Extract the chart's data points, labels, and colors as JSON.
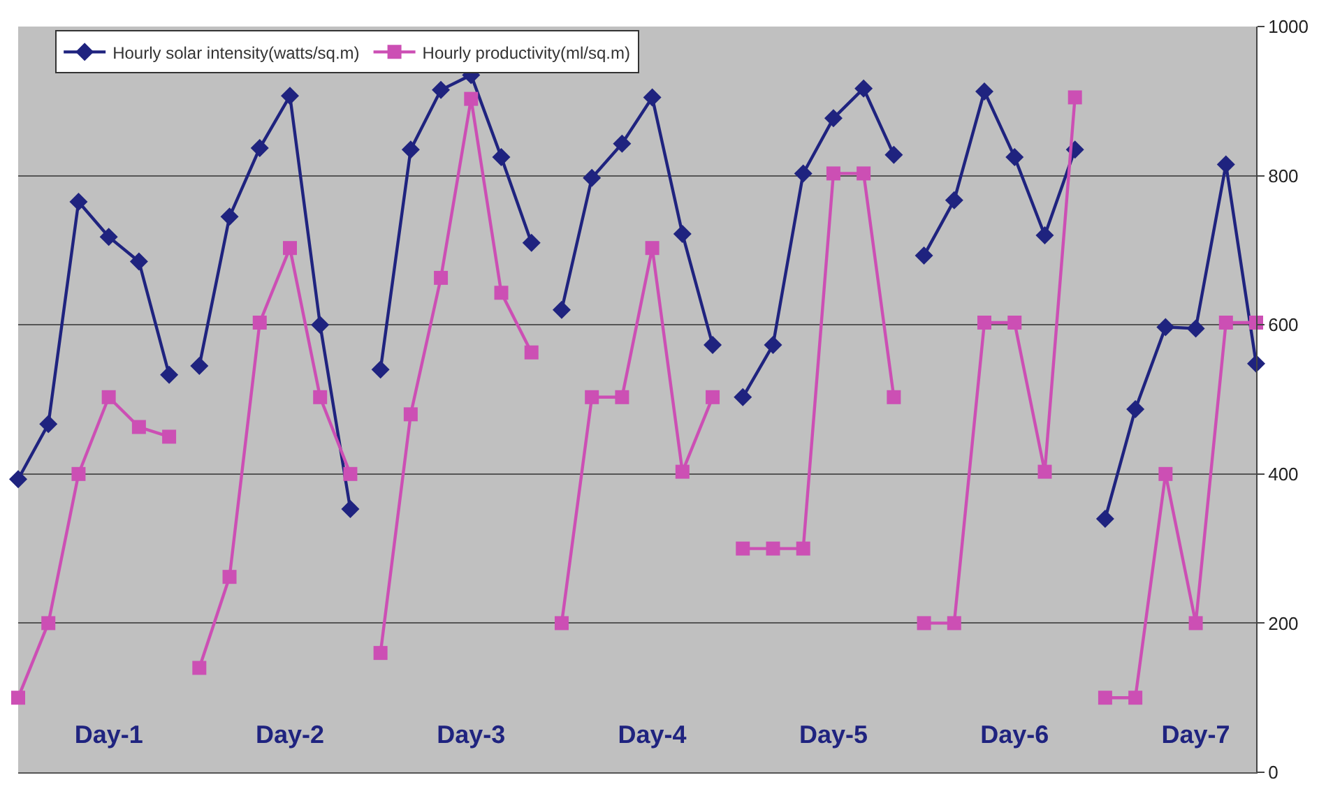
{
  "chart_data": {
    "type": "line",
    "ylim": [
      0,
      1000
    ],
    "yticks": [
      0,
      200,
      400,
      600,
      800,
      1000
    ],
    "categories": [
      null,
      null,
      null,
      "Day-1",
      null,
      null,
      null,
      null,
      null,
      "Day-2",
      null,
      null,
      null,
      null,
      null,
      "Day-3",
      null,
      null,
      null,
      null,
      null,
      "Day-4",
      null,
      null,
      null,
      null,
      null,
      "Day-5",
      null,
      null,
      null,
      null,
      null,
      "Day-6",
      null,
      null,
      null,
      null,
      null,
      "Day-7",
      null,
      null
    ],
    "grid": "y",
    "legend": "top left",
    "line_style": "solid",
    "series": [
      {
        "name": "Hourly solar intensity(watts/sq.m)",
        "color": "#1f237f",
        "marker": "diamond",
        "values": [
          393,
          467,
          765,
          718,
          685,
          533,
          null,
          null,
          null,
          null,
          null,
          null,
          null,
          null,
          null,
          null,
          null,
          null,
          null,
          null,
          null,
          null,
          null,
          null,
          null,
          null,
          null,
          null,
          null,
          null,
          null,
          null,
          null,
          null,
          null,
          null,
          null,
          null,
          null,
          null,
          null,
          null
        ]
      },
      {
        "name": "Hourly productivity(ml/sq.m)",
        "color": "#cc4fb4",
        "marker": "square",
        "values": [
          100,
          200,
          400,
          503,
          463,
          450,
          null,
          null,
          null,
          null,
          null,
          null,
          null,
          null,
          null,
          null,
          null,
          null,
          null,
          null,
          null,
          null,
          null,
          null,
          null,
          null,
          null,
          null,
          null,
          null,
          null,
          null,
          null,
          null,
          null,
          null,
          null,
          null,
          null,
          null,
          null,
          null
        ]
      },
      {
        "color": "#1f237f",
        "marker": "diamond",
        "values": [
          null,
          null,
          null,
          null,
          null,
          null,
          545,
          745,
          837,
          907,
          600,
          353,
          null,
          null,
          null,
          null,
          null,
          null,
          null,
          null,
          null,
          null,
          null,
          null,
          null,
          null,
          null,
          null,
          null,
          null,
          null,
          null,
          null,
          null,
          null,
          null,
          null,
          null,
          null,
          null,
          null,
          null
        ]
      },
      {
        "color": "#cc4fb4",
        "marker": "square",
        "values": [
          null,
          null,
          null,
          null,
          null,
          null,
          140,
          262,
          603,
          703,
          503,
          400,
          null,
          null,
          null,
          null,
          null,
          null,
          null,
          null,
          null,
          null,
          null,
          null,
          null,
          null,
          null,
          null,
          null,
          null,
          null,
          null,
          null,
          null,
          null,
          null,
          null,
          null,
          null,
          null,
          null,
          null
        ]
      },
      {
        "color": "#1f237f",
        "marker": "diamond",
        "values": [
          null,
          null,
          null,
          null,
          null,
          null,
          null,
          null,
          null,
          null,
          null,
          null,
          540,
          835,
          915,
          935,
          825,
          710,
          null,
          null,
          null,
          null,
          null,
          null,
          null,
          null,
          null,
          null,
          null,
          null,
          null,
          null,
          null,
          null,
          null,
          null,
          null,
          null,
          null,
          null,
          null,
          null
        ]
      },
      {
        "color": "#cc4fb4",
        "marker": "square",
        "values": [
          null,
          null,
          null,
          null,
          null,
          null,
          null,
          null,
          null,
          null,
          null,
          null,
          160,
          480,
          663,
          903,
          643,
          563,
          null,
          null,
          null,
          null,
          null,
          null,
          null,
          null,
          null,
          null,
          null,
          null,
          null,
          null,
          null,
          null,
          null,
          null,
          null,
          null,
          null,
          null,
          null,
          null
        ]
      },
      {
        "color": "#1f237f",
        "marker": "diamond",
        "values": [
          null,
          null,
          null,
          null,
          null,
          null,
          null,
          null,
          null,
          null,
          null,
          null,
          null,
          null,
          null,
          null,
          null,
          null,
          620,
          797,
          843,
          905,
          722,
          573,
          null,
          null,
          null,
          null,
          null,
          null,
          null,
          null,
          null,
          null,
          null,
          null,
          null,
          null,
          null,
          null,
          null,
          null
        ]
      },
      {
        "color": "#cc4fb4",
        "marker": "square",
        "values": [
          null,
          null,
          null,
          null,
          null,
          null,
          null,
          null,
          null,
          null,
          null,
          null,
          null,
          null,
          null,
          null,
          null,
          null,
          200,
          503,
          503,
          703,
          403,
          503,
          null,
          null,
          null,
          null,
          null,
          null,
          null,
          null,
          null,
          null,
          null,
          null,
          null,
          null,
          null,
          null,
          null,
          null
        ]
      },
      {
        "color": "#1f237f",
        "marker": "diamond",
        "values": [
          null,
          null,
          null,
          null,
          null,
          null,
          null,
          null,
          null,
          null,
          null,
          null,
          null,
          null,
          null,
          null,
          null,
          null,
          null,
          null,
          null,
          null,
          null,
          null,
          503,
          573,
          803,
          877,
          917,
          828,
          null,
          null,
          null,
          null,
          null,
          null,
          null,
          null,
          null,
          null,
          null,
          null
        ]
      },
      {
        "color": "#cc4fb4",
        "marker": "square",
        "values": [
          null,
          null,
          null,
          null,
          null,
          null,
          null,
          null,
          null,
          null,
          null,
          null,
          null,
          null,
          null,
          null,
          null,
          null,
          null,
          null,
          null,
          null,
          null,
          null,
          300,
          300,
          300,
          803,
          803,
          503,
          null,
          null,
          null,
          null,
          null,
          null,
          null,
          null,
          null,
          null,
          null,
          null
        ]
      },
      {
        "color": "#1f237f",
        "marker": "diamond",
        "values": [
          null,
          null,
          null,
          null,
          null,
          null,
          null,
          null,
          null,
          null,
          null,
          null,
          null,
          null,
          null,
          null,
          null,
          null,
          null,
          null,
          null,
          null,
          null,
          null,
          null,
          null,
          null,
          null,
          null,
          null,
          693,
          767,
          913,
          825,
          720,
          835,
          null,
          null,
          null,
          null,
          null,
          null
        ]
      },
      {
        "color": "#cc4fb4",
        "marker": "square",
        "values": [
          null,
          null,
          null,
          null,
          null,
          null,
          null,
          null,
          null,
          null,
          null,
          null,
          null,
          null,
          null,
          null,
          null,
          null,
          null,
          null,
          null,
          null,
          null,
          null,
          null,
          null,
          null,
          null,
          null,
          null,
          200,
          200,
          603,
          603,
          403,
          905,
          null,
          null,
          null,
          null,
          null,
          null
        ]
      },
      {
        "color": "#1f237f",
        "marker": "diamond",
        "values": [
          null,
          null,
          null,
          null,
          null,
          null,
          null,
          null,
          null,
          null,
          null,
          null,
          null,
          null,
          null,
          null,
          null,
          null,
          null,
          null,
          null,
          null,
          null,
          null,
          null,
          null,
          null,
          null,
          null,
          null,
          null,
          null,
          null,
          null,
          null,
          null,
          340,
          487,
          597,
          595,
          815,
          548
        ]
      },
      {
        "color": "#cc4fb4",
        "marker": "square",
        "values": [
          null,
          null,
          null,
          null,
          null,
          null,
          null,
          null,
          null,
          null,
          null,
          null,
          null,
          null,
          null,
          null,
          null,
          null,
          null,
          null,
          null,
          null,
          null,
          null,
          null,
          null,
          null,
          null,
          null,
          null,
          null,
          null,
          null,
          null,
          null,
          null,
          100,
          100,
          400,
          200,
          603,
          603
        ]
      }
    ]
  }
}
